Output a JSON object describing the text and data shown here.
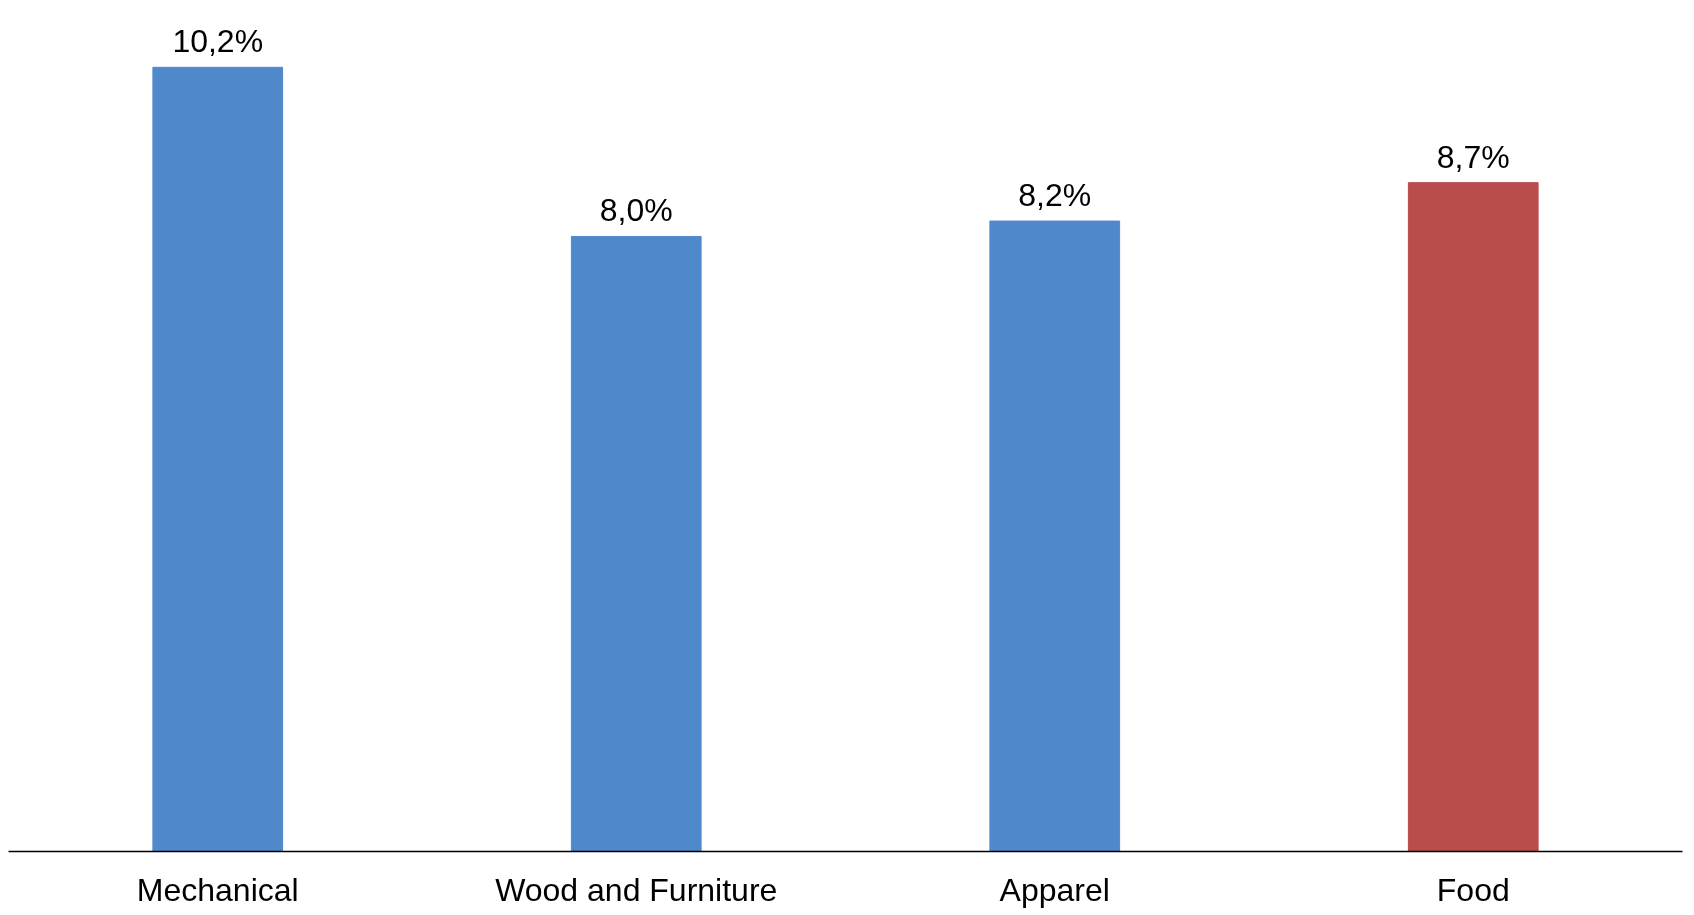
{
  "chart_data": {
    "type": "bar",
    "categories": [
      "Mechanical",
      "Wood and Furniture",
      "Apparel",
      "Food"
    ],
    "values": [
      10.2,
      8.0,
      8.2,
      8.7
    ],
    "colors": [
      "#5088cc",
      "#5088cc",
      "#5088cc",
      "#b94d4b"
    ],
    "value_labels": [
      "10,2%",
      "8,0%",
      "8,2%",
      "8,7%"
    ]
  }
}
